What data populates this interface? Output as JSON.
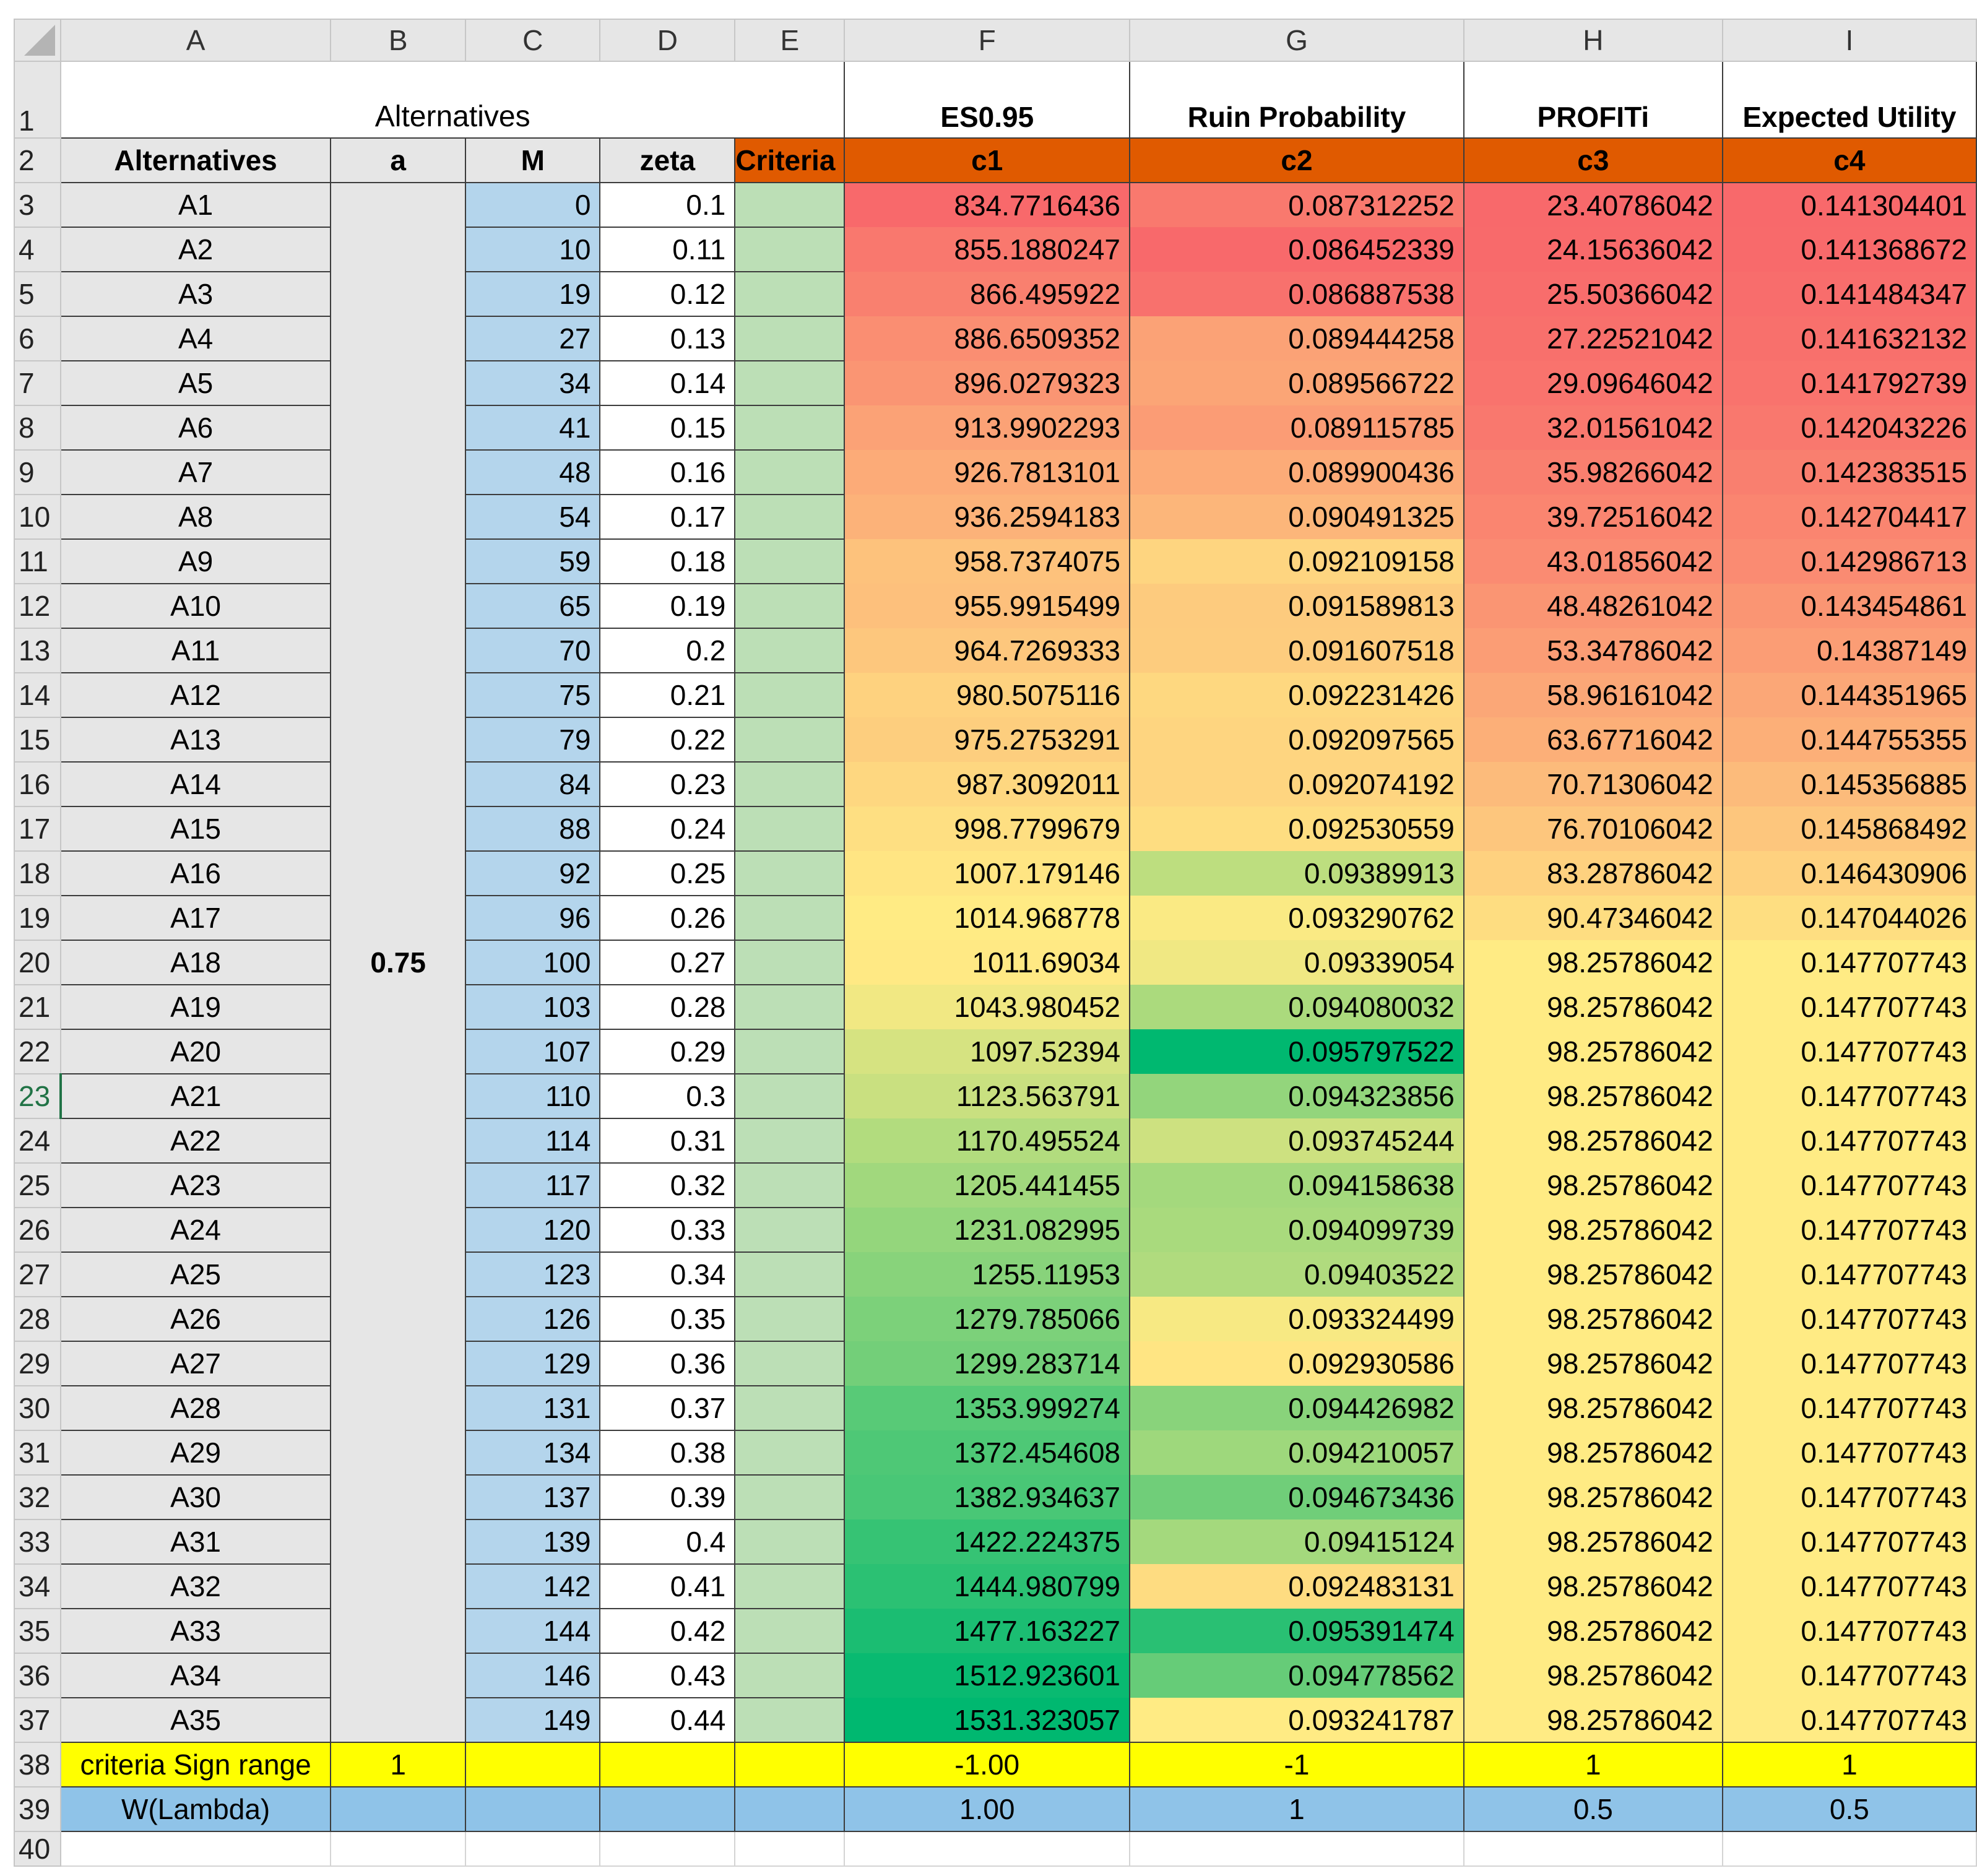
{
  "columns": [
    "A",
    "B",
    "C",
    "D",
    "E",
    "F",
    "G",
    "H",
    "I"
  ],
  "selected_row": "23",
  "row1": {
    "num": "1",
    "alternatives_title": "Alternatives",
    "F": "ES0.95",
    "G": "Ruin Probability",
    "H": "PROFITi",
    "I": "Expected Utility"
  },
  "row2": {
    "num": "2",
    "A": "Alternatives",
    "B": "a",
    "C": "M",
    "D": "zeta",
    "E": "Criteria",
    "F": "c1",
    "G": "c2",
    "H": "c3",
    "I": "c4"
  },
  "a_value": "0.75",
  "rows": [
    {
      "num": "3",
      "alt": "A1",
      "M": "0",
      "zeta": "0.1",
      "c1": "834.7716436",
      "c2": "0.087312252",
      "c3": "23.40786042",
      "c4": "0.141304401"
    },
    {
      "num": "4",
      "alt": "A2",
      "M": "10",
      "zeta": "0.11",
      "c1": "855.1880247",
      "c2": "0.086452339",
      "c3": "24.15636042",
      "c4": "0.141368672"
    },
    {
      "num": "5",
      "alt": "A3",
      "M": "19",
      "zeta": "0.12",
      "c1": "866.495922",
      "c2": "0.086887538",
      "c3": "25.50366042",
      "c4": "0.141484347"
    },
    {
      "num": "6",
      "alt": "A4",
      "M": "27",
      "zeta": "0.13",
      "c1": "886.6509352",
      "c2": "0.089444258",
      "c3": "27.22521042",
      "c4": "0.141632132"
    },
    {
      "num": "7",
      "alt": "A5",
      "M": "34",
      "zeta": "0.14",
      "c1": "896.0279323",
      "c2": "0.089566722",
      "c3": "29.09646042",
      "c4": "0.141792739"
    },
    {
      "num": "8",
      "alt": "A6",
      "M": "41",
      "zeta": "0.15",
      "c1": "913.9902293",
      "c2": "0.089115785",
      "c3": "32.01561042",
      "c4": "0.142043226"
    },
    {
      "num": "9",
      "alt": "A7",
      "M": "48",
      "zeta": "0.16",
      "c1": "926.7813101",
      "c2": "0.089900436",
      "c3": "35.98266042",
      "c4": "0.142383515"
    },
    {
      "num": "10",
      "alt": "A8",
      "M": "54",
      "zeta": "0.17",
      "c1": "936.2594183",
      "c2": "0.090491325",
      "c3": "39.72516042",
      "c4": "0.142704417"
    },
    {
      "num": "11",
      "alt": "A9",
      "M": "59",
      "zeta": "0.18",
      "c1": "958.7374075",
      "c2": "0.092109158",
      "c3": "43.01856042",
      "c4": "0.142986713"
    },
    {
      "num": "12",
      "alt": "A10",
      "M": "65",
      "zeta": "0.19",
      "c1": "955.9915499",
      "c2": "0.091589813",
      "c3": "48.48261042",
      "c4": "0.143454861"
    },
    {
      "num": "13",
      "alt": "A11",
      "M": "70",
      "zeta": "0.2",
      "c1": "964.7269333",
      "c2": "0.091607518",
      "c3": "53.34786042",
      "c4": "0.14387149"
    },
    {
      "num": "14",
      "alt": "A12",
      "M": "75",
      "zeta": "0.21",
      "c1": "980.5075116",
      "c2": "0.092231426",
      "c3": "58.96161042",
      "c4": "0.144351965"
    },
    {
      "num": "15",
      "alt": "A13",
      "M": "79",
      "zeta": "0.22",
      "c1": "975.2753291",
      "c2": "0.092097565",
      "c3": "63.67716042",
      "c4": "0.144755355"
    },
    {
      "num": "16",
      "alt": "A14",
      "M": "84",
      "zeta": "0.23",
      "c1": "987.3092011",
      "c2": "0.092074192",
      "c3": "70.71306042",
      "c4": "0.145356885"
    },
    {
      "num": "17",
      "alt": "A15",
      "M": "88",
      "zeta": "0.24",
      "c1": "998.7799679",
      "c2": "0.092530559",
      "c3": "76.70106042",
      "c4": "0.145868492"
    },
    {
      "num": "18",
      "alt": "A16",
      "M": "92",
      "zeta": "0.25",
      "c1": "1007.179146",
      "c2": "0.09389913",
      "c3": "83.28786042",
      "c4": "0.146430906"
    },
    {
      "num": "19",
      "alt": "A17",
      "M": "96",
      "zeta": "0.26",
      "c1": "1014.968778",
      "c2": "0.093290762",
      "c3": "90.47346042",
      "c4": "0.147044026"
    },
    {
      "num": "20",
      "alt": "A18",
      "M": "100",
      "zeta": "0.27",
      "c1": "1011.69034",
      "c2": "0.09339054",
      "c3": "98.25786042",
      "c4": "0.147707743"
    },
    {
      "num": "21",
      "alt": "A19",
      "M": "103",
      "zeta": "0.28",
      "c1": "1043.980452",
      "c2": "0.094080032",
      "c3": "98.25786042",
      "c4": "0.147707743"
    },
    {
      "num": "22",
      "alt": "A20",
      "M": "107",
      "zeta": "0.29",
      "c1": "1097.52394",
      "c2": "0.095797522",
      "c3": "98.25786042",
      "c4": "0.147707743"
    },
    {
      "num": "23",
      "alt": "A21",
      "M": "110",
      "zeta": "0.3",
      "c1": "1123.563791",
      "c2": "0.094323856",
      "c3": "98.25786042",
      "c4": "0.147707743"
    },
    {
      "num": "24",
      "alt": "A22",
      "M": "114",
      "zeta": "0.31",
      "c1": "1170.495524",
      "c2": "0.093745244",
      "c3": "98.25786042",
      "c4": "0.147707743"
    },
    {
      "num": "25",
      "alt": "A23",
      "M": "117",
      "zeta": "0.32",
      "c1": "1205.441455",
      "c2": "0.094158638",
      "c3": "98.25786042",
      "c4": "0.147707743"
    },
    {
      "num": "26",
      "alt": "A24",
      "M": "120",
      "zeta": "0.33",
      "c1": "1231.082995",
      "c2": "0.094099739",
      "c3": "98.25786042",
      "c4": "0.147707743"
    },
    {
      "num": "27",
      "alt": "A25",
      "M": "123",
      "zeta": "0.34",
      "c1": "1255.11953",
      "c2": "0.09403522",
      "c3": "98.25786042",
      "c4": "0.147707743"
    },
    {
      "num": "28",
      "alt": "A26",
      "M": "126",
      "zeta": "0.35",
      "c1": "1279.785066",
      "c2": "0.093324499",
      "c3": "98.25786042",
      "c4": "0.147707743"
    },
    {
      "num": "29",
      "alt": "A27",
      "M": "129",
      "zeta": "0.36",
      "c1": "1299.283714",
      "c2": "0.092930586",
      "c3": "98.25786042",
      "c4": "0.147707743"
    },
    {
      "num": "30",
      "alt": "A28",
      "M": "131",
      "zeta": "0.37",
      "c1": "1353.999274",
      "c2": "0.094426982",
      "c3": "98.25786042",
      "c4": "0.147707743"
    },
    {
      "num": "31",
      "alt": "A29",
      "M": "134",
      "zeta": "0.38",
      "c1": "1372.454608",
      "c2": "0.094210057",
      "c3": "98.25786042",
      "c4": "0.147707743"
    },
    {
      "num": "32",
      "alt": "A30",
      "M": "137",
      "zeta": "0.39",
      "c1": "1382.934637",
      "c2": "0.094673436",
      "c3": "98.25786042",
      "c4": "0.147707743"
    },
    {
      "num": "33",
      "alt": "A31",
      "M": "139",
      "zeta": "0.4",
      "c1": "1422.224375",
      "c2": "0.09415124",
      "c3": "98.25786042",
      "c4": "0.147707743"
    },
    {
      "num": "34",
      "alt": "A32",
      "M": "142",
      "zeta": "0.41",
      "c1": "1444.980799",
      "c2": "0.092483131",
      "c3": "98.25786042",
      "c4": "0.147707743"
    },
    {
      "num": "35",
      "alt": "A33",
      "M": "144",
      "zeta": "0.42",
      "c1": "1477.163227",
      "c2": "0.095391474",
      "c3": "98.25786042",
      "c4": "0.147707743"
    },
    {
      "num": "36",
      "alt": "A34",
      "M": "146",
      "zeta": "0.43",
      "c1": "1512.923601",
      "c2": "0.094778562",
      "c3": "98.25786042",
      "c4": "0.147707743"
    },
    {
      "num": "37",
      "alt": "A35",
      "M": "149",
      "zeta": "0.44",
      "c1": "1531.323057",
      "c2": "0.093241787",
      "c3": "98.25786042",
      "c4": "0.147707743"
    }
  ],
  "sign_row": {
    "num": "38",
    "label": "criteria Sign range",
    "B": "1",
    "F": "-1.00",
    "G": "-1",
    "H": "1",
    "I": "1"
  },
  "weight_row": {
    "num": "39",
    "label": "W(Lambda)",
    "F": "1.00",
    "G": "1",
    "H": "0.5",
    "I": "0.5"
  },
  "last_row_num": "40",
  "colors": {
    "scale_low": "#f8696b",
    "scale_mid": "#ffeb84",
    "scale_high": "#00b870",
    "header_orange": "#e05a00",
    "sign_yellow": "#ffff00",
    "weight_blue": "#8fc3e8",
    "m_blue": "#b4d5ec",
    "criteria_green": "#bcdfb6",
    "header_gray": "#e6e6e6"
  }
}
